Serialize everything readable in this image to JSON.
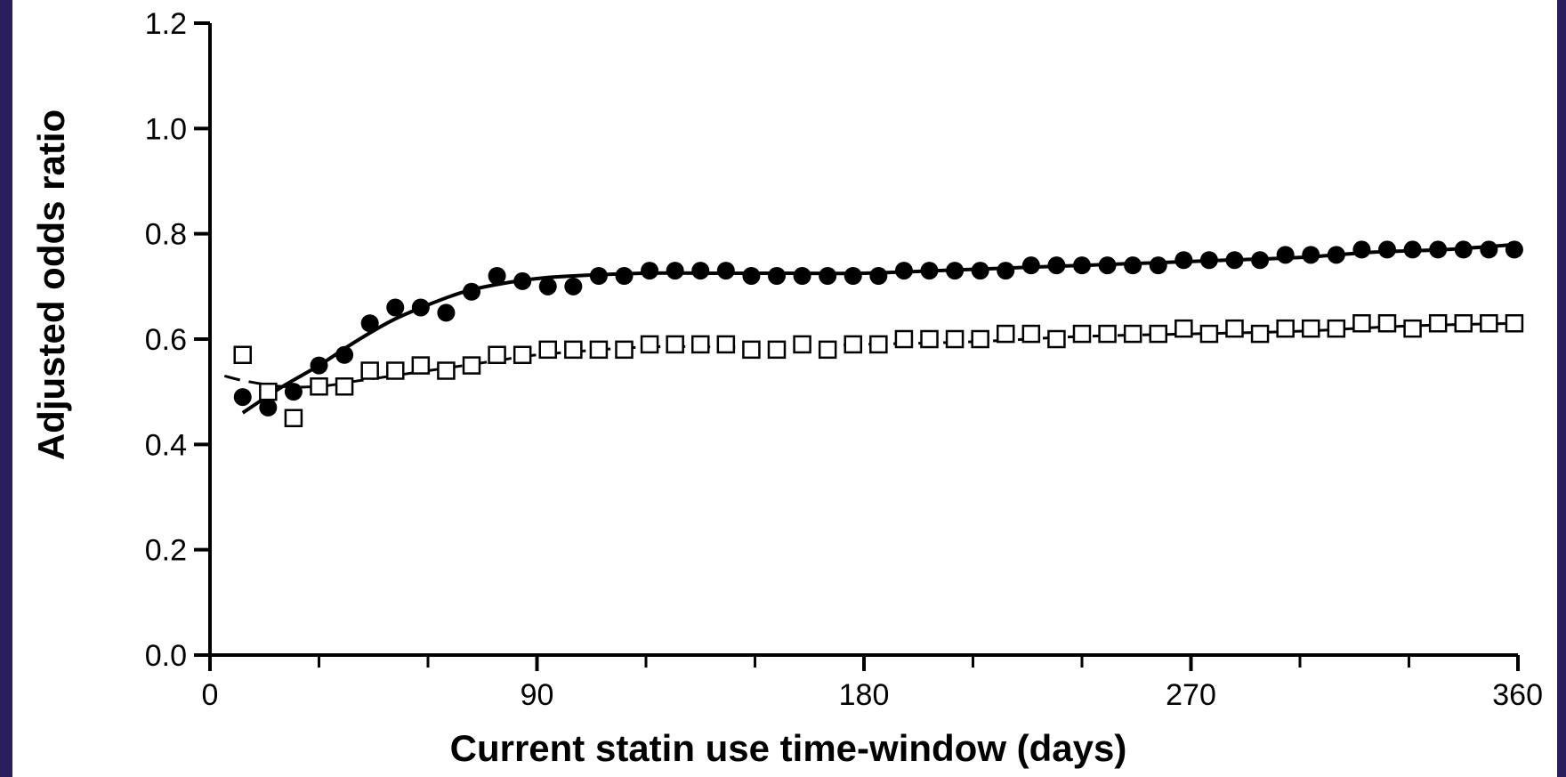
{
  "chart_data": {
    "type": "scatter",
    "title": "",
    "xlabel": "Current statin use time-window (days)",
    "ylabel": "Adjusted odds ratio",
    "xlim": [
      0,
      360
    ],
    "ylim": [
      0.0,
      1.2
    ],
    "x_ticks": [
      0,
      90,
      180,
      270,
      360
    ],
    "x_tick_labels": [
      "0",
      "90",
      "180",
      "270",
      "360"
    ],
    "x_minor_ticks": [
      30,
      60,
      120,
      150,
      210,
      240,
      300,
      330
    ],
    "y_ticks": [
      0.0,
      0.2,
      0.4,
      0.6,
      0.8,
      1.0,
      1.2
    ],
    "y_tick_labels": [
      "0.0",
      "0.2",
      "0.4",
      "0.6",
      "0.8",
      "1.0",
      "1.2"
    ],
    "grid": false,
    "legend": "none",
    "series": [
      {
        "marker": "filled-circle",
        "trend": "solid",
        "color": "#000000",
        "x": [
          9,
          16,
          23,
          30,
          37,
          44,
          51,
          58,
          65,
          72,
          79,
          86,
          93,
          100,
          107,
          114,
          121,
          128,
          135,
          142,
          149,
          156,
          163,
          170,
          177,
          184,
          191,
          198,
          205,
          212,
          219,
          226,
          233,
          240,
          247,
          254,
          261,
          268,
          275,
          282,
          289,
          296,
          303,
          310,
          317,
          324,
          331,
          338,
          345,
          352,
          359
        ],
        "y": [
          0.49,
          0.47,
          0.5,
          0.55,
          0.57,
          0.63,
          0.66,
          0.66,
          0.65,
          0.69,
          0.72,
          0.71,
          0.7,
          0.7,
          0.72,
          0.72,
          0.73,
          0.73,
          0.73,
          0.73,
          0.72,
          0.72,
          0.72,
          0.72,
          0.72,
          0.72,
          0.73,
          0.73,
          0.73,
          0.73,
          0.73,
          0.74,
          0.74,
          0.74,
          0.74,
          0.74,
          0.74,
          0.75,
          0.75,
          0.75,
          0.75,
          0.76,
          0.76,
          0.76,
          0.77,
          0.77,
          0.77,
          0.77,
          0.77,
          0.77,
          0.77
        ],
        "trend_x": [
          9,
          20,
          30,
          40,
          50,
          60,
          70,
          80,
          90,
          100,
          120,
          140,
          160,
          180,
          200,
          220,
          240,
          260,
          280,
          300,
          320,
          340,
          360
        ],
        "trend_y": [
          0.46,
          0.51,
          0.55,
          0.595,
          0.635,
          0.665,
          0.69,
          0.705,
          0.715,
          0.72,
          0.725,
          0.725,
          0.725,
          0.725,
          0.73,
          0.735,
          0.74,
          0.745,
          0.75,
          0.755,
          0.765,
          0.77,
          0.78
        ]
      },
      {
        "marker": "open-square",
        "trend": "dashed",
        "color": "#000000",
        "x": [
          9,
          16,
          23,
          30,
          37,
          44,
          51,
          58,
          65,
          72,
          79,
          86,
          93,
          100,
          107,
          114,
          121,
          128,
          135,
          142,
          149,
          156,
          163,
          170,
          177,
          184,
          191,
          198,
          205,
          212,
          219,
          226,
          233,
          240,
          247,
          254,
          261,
          268,
          275,
          282,
          289,
          296,
          303,
          310,
          317,
          324,
          331,
          338,
          345,
          352,
          359
        ],
        "y": [
          0.57,
          0.5,
          0.45,
          0.51,
          0.51,
          0.54,
          0.54,
          0.55,
          0.54,
          0.55,
          0.57,
          0.57,
          0.58,
          0.58,
          0.58,
          0.58,
          0.59,
          0.59,
          0.59,
          0.59,
          0.58,
          0.58,
          0.59,
          0.58,
          0.59,
          0.59,
          0.6,
          0.6,
          0.6,
          0.6,
          0.61,
          0.61,
          0.6,
          0.61,
          0.61,
          0.61,
          0.61,
          0.62,
          0.61,
          0.62,
          0.61,
          0.62,
          0.62,
          0.62,
          0.63,
          0.63,
          0.62,
          0.63,
          0.63,
          0.63,
          0.63
        ],
        "trend_x": [
          4,
          10,
          20,
          30,
          40,
          50,
          60,
          70,
          80,
          90,
          120,
          150,
          180,
          210,
          240,
          270,
          300,
          330,
          360
        ],
        "trend_y": [
          0.53,
          0.52,
          0.51,
          0.51,
          0.52,
          0.53,
          0.54,
          0.55,
          0.56,
          0.57,
          0.585,
          0.585,
          0.59,
          0.595,
          0.605,
          0.61,
          0.615,
          0.625,
          0.63
        ]
      }
    ]
  }
}
